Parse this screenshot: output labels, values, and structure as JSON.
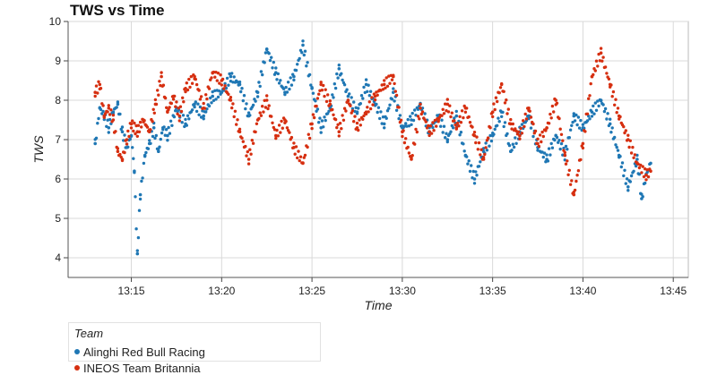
{
  "chart_data": {
    "type": "scatter",
    "title": "TWS vs Time",
    "xlabel": "Time",
    "ylabel": "TWS",
    "ylim": [
      3.5,
      10
    ],
    "xlim": [
      "13:11:30",
      "13:45:50"
    ],
    "x_tick_labels": [
      "13:15",
      "13:20",
      "13:25",
      "13:30",
      "13:35",
      "13:40",
      "13:45"
    ],
    "y_tick_labels": [
      "4",
      "5",
      "6",
      "7",
      "8",
      "9",
      "10"
    ],
    "grid": true,
    "legend": {
      "title": "Team",
      "placement": "bottom-left"
    },
    "series": [
      {
        "name": "Alinghi Red Bull Racing",
        "color": "#1f77b4",
        "points": [
          [
            "13:13:00",
            6.9
          ],
          [
            "13:13:15",
            7.8
          ],
          [
            "13:13:30",
            7.6
          ],
          [
            "13:13:45",
            7.3
          ],
          [
            "13:14:00",
            7.7
          ],
          [
            "13:14:15",
            7.9
          ],
          [
            "13:14:30",
            7.2
          ],
          [
            "13:14:45",
            6.8
          ],
          [
            "13:15:00",
            7.1
          ],
          [
            "13:15:10",
            6.2
          ],
          [
            "13:15:20",
            4.1
          ],
          [
            "13:15:30",
            5.6
          ],
          [
            "13:15:45",
            6.6
          ],
          [
            "13:16:00",
            6.9
          ],
          [
            "13:16:15",
            7.3
          ],
          [
            "13:16:30",
            6.7
          ],
          [
            "13:16:45",
            7.3
          ],
          [
            "13:17:00",
            7.1
          ],
          [
            "13:17:30",
            7.8
          ],
          [
            "13:18:00",
            7.4
          ],
          [
            "13:18:30",
            7.9
          ],
          [
            "13:19:00",
            7.6
          ],
          [
            "13:19:30",
            8.1
          ],
          [
            "13:20:00",
            8.2
          ],
          [
            "13:20:30",
            8.6
          ],
          [
            "13:21:00",
            8.4
          ],
          [
            "13:21:30",
            7.6
          ],
          [
            "13:22:00",
            8.2
          ],
          [
            "13:22:30",
            9.3
          ],
          [
            "13:23:00",
            8.7
          ],
          [
            "13:23:30",
            8.2
          ],
          [
            "13:24:00",
            8.6
          ],
          [
            "13:24:30",
            9.4
          ],
          [
            "13:25:00",
            8.3
          ],
          [
            "13:25:30",
            7.3
          ],
          [
            "13:26:00",
            7.8
          ],
          [
            "13:26:30",
            8.8
          ],
          [
            "13:27:00",
            8.1
          ],
          [
            "13:27:30",
            7.7
          ],
          [
            "13:28:00",
            8.4
          ],
          [
            "13:28:30",
            7.9
          ],
          [
            "13:29:00",
            7.4
          ],
          [
            "13:29:30",
            8.2
          ],
          [
            "13:30:00",
            7.3
          ],
          [
            "13:30:30",
            7.5
          ],
          [
            "13:31:00",
            7.9
          ],
          [
            "13:31:30",
            7.2
          ],
          [
            "13:32:00",
            7.6
          ],
          [
            "13:32:30",
            7.0
          ],
          [
            "13:33:00",
            7.6
          ],
          [
            "13:33:30",
            6.6
          ],
          [
            "13:34:00",
            6.0
          ],
          [
            "13:34:30",
            6.7
          ],
          [
            "13:35:00",
            7.1
          ],
          [
            "13:35:30",
            7.7
          ],
          [
            "13:36:00",
            6.7
          ],
          [
            "13:36:30",
            7.2
          ],
          [
            "13:37:00",
            7.6
          ],
          [
            "13:37:30",
            6.8
          ],
          [
            "13:38:00",
            6.5
          ],
          [
            "13:38:30",
            7.1
          ],
          [
            "13:39:00",
            6.6
          ],
          [
            "13:39:30",
            7.6
          ],
          [
            "13:40:00",
            7.3
          ],
          [
            "13:40:30",
            7.7
          ],
          [
            "13:41:00",
            8.0
          ],
          [
            "13:41:30",
            7.4
          ],
          [
            "13:42:00",
            6.6
          ],
          [
            "13:42:30",
            5.8
          ],
          [
            "13:43:00",
            6.5
          ],
          [
            "13:43:15",
            5.5
          ],
          [
            "13:43:30",
            6.1
          ],
          [
            "13:43:45",
            6.4
          ]
        ]
      },
      {
        "name": "INEOS Team Britannia",
        "color": "#d62f10",
        "points": [
          [
            "13:13:00",
            8.2
          ],
          [
            "13:13:15",
            8.4
          ],
          [
            "13:13:30",
            7.6
          ],
          [
            "13:13:45",
            7.8
          ],
          [
            "13:14:00",
            7.5
          ],
          [
            "13:14:15",
            6.7
          ],
          [
            "13:14:30",
            6.5
          ],
          [
            "13:14:45",
            7.0
          ],
          [
            "13:15:00",
            7.4
          ],
          [
            "13:15:20",
            7.2
          ],
          [
            "13:15:40",
            7.5
          ],
          [
            "13:16:00",
            7.2
          ],
          [
            "13:16:20",
            7.9
          ],
          [
            "13:16:40",
            8.6
          ],
          [
            "13:17:00",
            7.7
          ],
          [
            "13:17:20",
            8.1
          ],
          [
            "13:17:40",
            7.6
          ],
          [
            "13:18:00",
            8.3
          ],
          [
            "13:18:30",
            8.6
          ],
          [
            "13:19:00",
            7.8
          ],
          [
            "13:19:30",
            8.7
          ],
          [
            "13:20:00",
            8.5
          ],
          [
            "13:20:30",
            8.0
          ],
          [
            "13:21:00",
            7.2
          ],
          [
            "13:21:30",
            6.5
          ],
          [
            "13:22:00",
            7.5
          ],
          [
            "13:22:30",
            8.0
          ],
          [
            "13:23:00",
            7.1
          ],
          [
            "13:23:30",
            7.5
          ],
          [
            "13:24:00",
            6.8
          ],
          [
            "13:24:30",
            6.4
          ],
          [
            "13:25:00",
            7.4
          ],
          [
            "13:25:30",
            8.4
          ],
          [
            "13:26:00",
            7.9
          ],
          [
            "13:26:30",
            7.2
          ],
          [
            "13:27:00",
            8.0
          ],
          [
            "13:27:30",
            7.3
          ],
          [
            "13:28:00",
            7.7
          ],
          [
            "13:28:30",
            8.1
          ],
          [
            "13:29:00",
            8.4
          ],
          [
            "13:29:30",
            8.6
          ],
          [
            "13:30:00",
            7.2
          ],
          [
            "13:30:30",
            6.5
          ],
          [
            "13:31:00",
            7.8
          ],
          [
            "13:31:30",
            7.2
          ],
          [
            "13:32:00",
            7.5
          ],
          [
            "13:32:30",
            7.9
          ],
          [
            "13:33:00",
            7.3
          ],
          [
            "13:33:30",
            7.8
          ],
          [
            "13:34:00",
            7.1
          ],
          [
            "13:34:30",
            6.5
          ],
          [
            "13:35:00",
            7.7
          ],
          [
            "13:35:30",
            8.4
          ],
          [
            "13:36:00",
            7.4
          ],
          [
            "13:36:30",
            7.1
          ],
          [
            "13:37:00",
            7.8
          ],
          [
            "13:37:30",
            6.9
          ],
          [
            "13:38:00",
            7.3
          ],
          [
            "13:38:30",
            8.0
          ],
          [
            "13:39:00",
            6.6
          ],
          [
            "13:39:30",
            5.6
          ],
          [
            "13:40:00",
            6.9
          ],
          [
            "13:40:30",
            8.6
          ],
          [
            "13:41:00",
            9.2
          ],
          [
            "13:41:30",
            8.4
          ],
          [
            "13:42:00",
            7.6
          ],
          [
            "13:42:30",
            7.0
          ],
          [
            "13:43:00",
            6.4
          ],
          [
            "13:43:30",
            6.1
          ],
          [
            "13:43:45",
            6.2
          ]
        ]
      }
    ]
  }
}
